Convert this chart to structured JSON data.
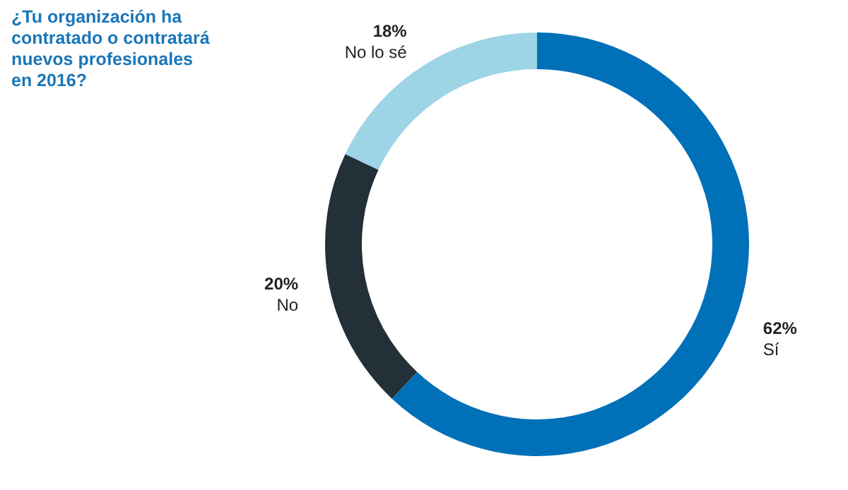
{
  "chart_data": {
    "type": "donut",
    "title": "¿Tu organización ha contratado o contratará nuevos profesionales en 2016?",
    "categories": [
      "Sí",
      "No",
      "No lo sé"
    ],
    "values": [
      62,
      20,
      18
    ],
    "value_labels": [
      "62%",
      "20%",
      "18%"
    ],
    "colors": [
      "#0070b8",
      "#243038",
      "#9dd4e6"
    ]
  }
}
